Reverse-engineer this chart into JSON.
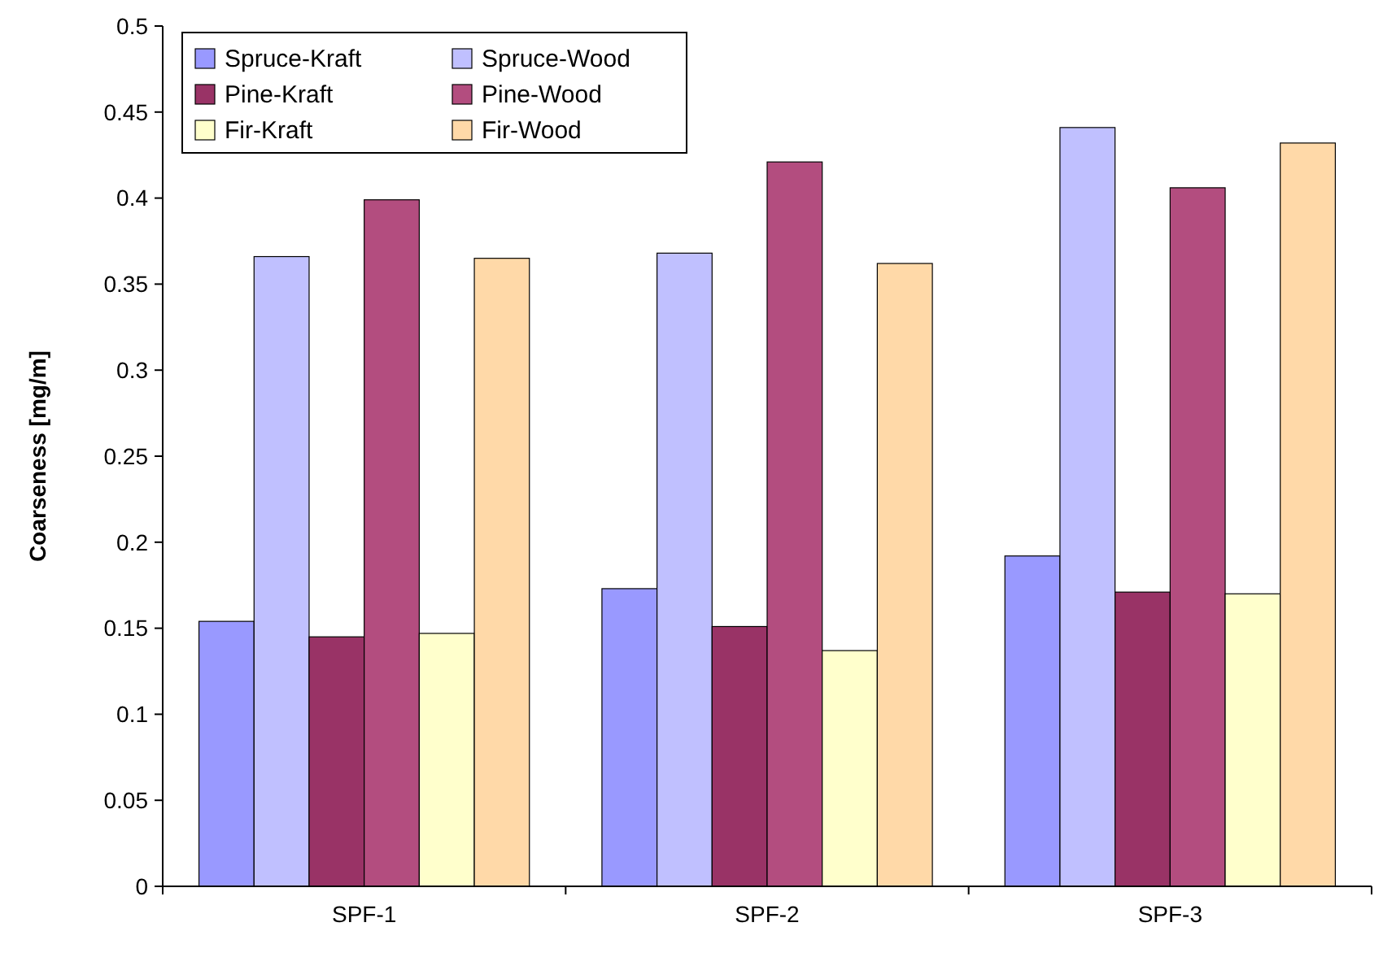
{
  "chart_data": {
    "type": "bar",
    "ylabel": "Coarseness [mg/m]",
    "categories": [
      "SPF-1",
      "SPF-2",
      "SPF-3"
    ],
    "series": [
      {
        "name": "Spruce-Kraft",
        "color": "#9999ff",
        "values": [
          0.154,
          0.173,
          0.192
        ]
      },
      {
        "name": "Spruce-Wood",
        "color": "#c0c0ff",
        "values": [
          0.366,
          0.368,
          0.441
        ]
      },
      {
        "name": "Pine-Kraft",
        "color": "#993366",
        "values": [
          0.145,
          0.151,
          0.171
        ]
      },
      {
        "name": "Pine-Wood",
        "color": "#b34d7f",
        "values": [
          0.399,
          0.421,
          0.406
        ]
      },
      {
        "name": "Fir-Kraft",
        "color": "#ffffcc",
        "values": [
          0.147,
          0.137,
          0.17
        ]
      },
      {
        "name": "Fir-Wood",
        "color": "#ffd9a8",
        "values": [
          0.365,
          0.362,
          0.432
        ]
      }
    ],
    "ylim": [
      0,
      0.5
    ],
    "yticks": [
      0,
      {
        "value": 0.05,
        "label": "0.05"
      },
      {
        "value": 0.1,
        "label": "0.1"
      },
      {
        "value": 0.15,
        "label": "0.15"
      },
      {
        "value": 0.2,
        "label": "0.2"
      },
      {
        "value": 0.25,
        "label": "0.25"
      },
      {
        "value": 0.3,
        "label": "0.3"
      },
      {
        "value": 0.35,
        "label": "0.35"
      },
      {
        "value": 0.4,
        "label": "0.4"
      },
      {
        "value": 0.45,
        "label": "0.45"
      },
      {
        "value": 0.5,
        "label": "0.5"
      }
    ],
    "grid": false,
    "legend": "top left"
  }
}
